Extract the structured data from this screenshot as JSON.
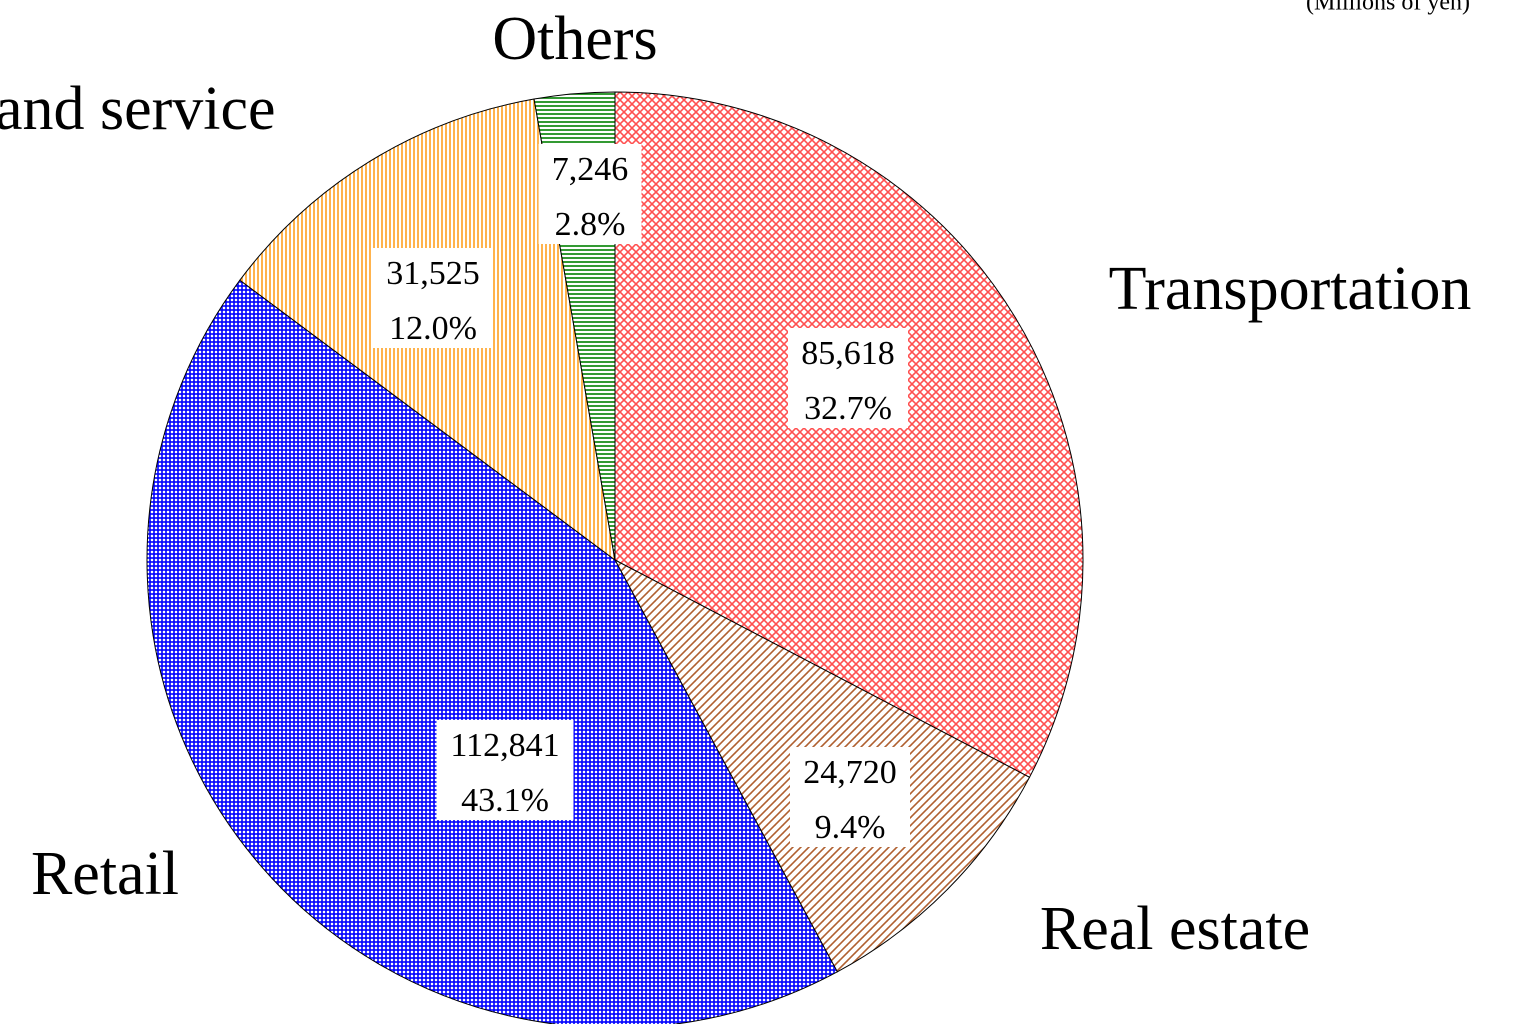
{
  "chart_data": {
    "type": "pie",
    "unit": "(Millions of yen)",
    "categories": [
      "Transportation",
      "Real estate",
      "Retail",
      "and service",
      "Others"
    ],
    "values": [
      85618,
      24720,
      112841,
      31525,
      7246
    ],
    "value_labels": [
      "85,618",
      "24,720",
      "112,841",
      "31,525",
      "7,246"
    ],
    "percents": [
      32.7,
      9.4,
      43.1,
      12.0,
      2.8
    ],
    "percent_labels": [
      "32.7%",
      "9.4%",
      "43.1%",
      "12.0%",
      "2.8%"
    ],
    "colors": [
      "#ff5050",
      "#b06030",
      "#0000ff",
      "#ffa020",
      "#008000"
    ],
    "patterns": [
      "crosshatch",
      "diagonal",
      "grid",
      "vertical",
      "horizontal"
    ]
  }
}
